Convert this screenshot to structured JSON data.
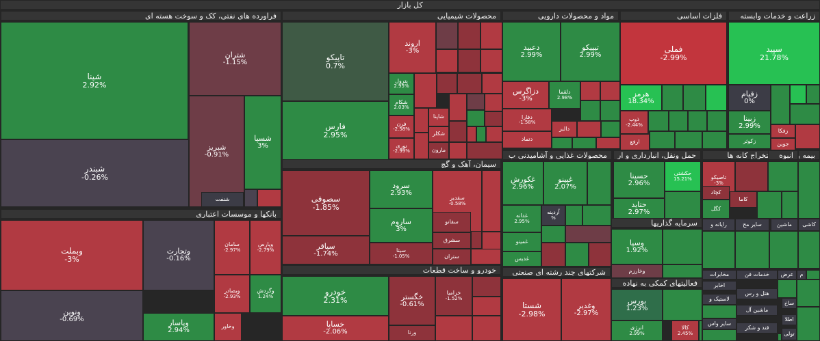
{
  "title": "کل بازار",
  "colors": {
    "g1": "#2e8b45",
    "g2": "#36a455",
    "g3": "#27c153",
    "g4": "#2f6e4a",
    "g5": "#3f5a45",
    "r1": "#b13a42",
    "r2": "#8e333b",
    "r3": "#6e3d47",
    "r4": "#c2353d",
    "dk": "#4a4350",
    "dk2": "#3c3c46"
  },
  "sectors": [
    {
      "id": "oil",
      "label": "فراورده های نفتی، کک و سوخت هسته ای"
    },
    {
      "id": "chem",
      "label": "محصولات شیمیایی"
    },
    {
      "id": "pharma",
      "label": "مواد و محصولات دارویی"
    },
    {
      "id": "metal",
      "label": "فلزات اساسی"
    },
    {
      "id": "agri",
      "label": "زراعت و خدمات وابسته"
    },
    {
      "id": "bank",
      "label": "بانکها و موسسات اعتباری"
    },
    {
      "id": "cement",
      "label": "سیمان، آهک و گچ"
    },
    {
      "id": "auto",
      "label": "خودرو و ساخت قطعات"
    },
    {
      "id": "multi",
      "label": "شرکتهای چند رشته ای صنعتی"
    },
    {
      "id": "food",
      "label": "محصولات غذایی و آشامیدنی ب"
    },
    {
      "id": "transport",
      "label": "حمل ونقل، انبارداری و ار"
    },
    {
      "id": "mining",
      "label": "استخراج کانه ها"
    },
    {
      "id": "insure",
      "label": "بیمه و"
    },
    {
      "id": "invest",
      "label": "سرمایه گذاریها"
    },
    {
      "id": "fin",
      "label": "فعالیتهای کمکی به نهاده"
    },
    {
      "id": "mass",
      "label": "انبوه"
    }
  ],
  "tiles": [
    {
      "n": "شپنا",
      "p": "2.92%"
    },
    {
      "n": "شتران",
      "p": "-1.15%"
    },
    {
      "n": "شبریز",
      "p": "-0.91%"
    },
    {
      "n": "شسپا",
      "p": "3%"
    },
    {
      "n": "شبندر",
      "p": "-0.26%"
    },
    {
      "n": "شنفت",
      "p": ""
    },
    {
      "n": "تاپیکو",
      "p": "0.7%"
    },
    {
      "n": "فارس",
      "p": "2.95%"
    },
    {
      "n": "اروند",
      "p": "-3%"
    },
    {
      "n": "پترول",
      "p": "2.95%"
    },
    {
      "n": "شکام",
      "p": "2.03%"
    },
    {
      "n": "فرن",
      "p": "-2.58%"
    },
    {
      "n": "نوری",
      "p": "-2.99%"
    },
    {
      "n": "شاپنا",
      "p": ""
    },
    {
      "n": "شکلر",
      "p": ""
    },
    {
      "n": "مارون",
      "p": ""
    },
    {
      "n": "دعبید",
      "p": "2.99%"
    },
    {
      "n": "تیپیکو",
      "p": "2.99%"
    },
    {
      "n": "دزاگرس",
      "p": "-3%"
    },
    {
      "n": "دلقما",
      "p": "2.98%"
    },
    {
      "n": "دفارا",
      "p": "-1.58%"
    },
    {
      "n": "دالبر",
      "p": ""
    },
    {
      "n": "دتماد",
      "p": ""
    },
    {
      "n": "فملی",
      "p": "-2.99%"
    },
    {
      "n": "هرمز",
      "p": "18.34%"
    },
    {
      "n": "ذوب",
      "p": "-2.44%"
    },
    {
      "n": "ارفع",
      "p": ""
    },
    {
      "n": "سپید",
      "p": "21.78%"
    },
    {
      "n": "زقیام",
      "p": "0%"
    },
    {
      "n": "زبینا",
      "p": "2.99%"
    },
    {
      "n": "زکوثر",
      "p": ""
    },
    {
      "n": "زفکا",
      "p": ""
    },
    {
      "n": "جوین",
      "p": ""
    },
    {
      "n": "وبملت",
      "p": "-3%"
    },
    {
      "n": "وتجارت",
      "p": "-0.16%"
    },
    {
      "n": "سامان",
      "p": "-2.97%"
    },
    {
      "n": "وپارس",
      "p": "-2.79%"
    },
    {
      "n": "وبصادر",
      "p": "-2.93%"
    },
    {
      "n": "وگردش",
      "p": "1.24%"
    },
    {
      "n": "ونوین",
      "p": "-0.69%"
    },
    {
      "n": "وپاسار",
      "p": "2.94%"
    },
    {
      "n": "وخاور",
      "p": ""
    },
    {
      "n": "سصوفی",
      "p": "-1.85%"
    },
    {
      "n": "سرود",
      "p": "2.93%"
    },
    {
      "n": "سفدیر",
      "p": "-0.58%"
    },
    {
      "n": "ساروم",
      "p": "3%"
    },
    {
      "n": "سفانو",
      "p": ""
    },
    {
      "n": "سشرق",
      "p": ""
    },
    {
      "n": "سپاقر",
      "p": "-1.74%"
    },
    {
      "n": "سیتا",
      "p": "-1.05%"
    },
    {
      "n": "ستران",
      "p": ""
    },
    {
      "n": "خودرو",
      "p": "2.31%"
    },
    {
      "n": "خگستر",
      "p": "-0.61%"
    },
    {
      "n": "خزامیا",
      "p": "-1.52%"
    },
    {
      "n": "خساپا",
      "p": "-2.06%"
    },
    {
      "n": "ورنا",
      "p": ""
    },
    {
      "n": "شستا",
      "p": "-2.98%"
    },
    {
      "n": "وغدیر",
      "p": "-2.97%"
    },
    {
      "n": "غکورش",
      "p": "2.96%"
    },
    {
      "n": "غپینو",
      "p": "2.07%"
    },
    {
      "n": "غدانه",
      "p": "2.95%"
    },
    {
      "n": "آردینه",
      "p": "%"
    },
    {
      "n": "غمینو",
      "p": ""
    },
    {
      "n": "غدیس",
      "p": ""
    },
    {
      "n": "حسینا",
      "p": "2.96%"
    },
    {
      "n": "حکشتی",
      "p": "15.21%"
    },
    {
      "n": "حتاید",
      "p": "2.97%"
    },
    {
      "n": "کگل",
      "p": ""
    },
    {
      "n": "تاصیکو",
      "p": "-3%"
    },
    {
      "n": "کچاد",
      "p": ""
    },
    {
      "n": "کاما",
      "p": ""
    },
    {
      "n": "وسپا",
      "p": "1.92%"
    },
    {
      "n": "وخارزم",
      "p": ""
    },
    {
      "n": "بورس",
      "p": "1.23%"
    },
    {
      "n": "انرژی",
      "p": "2.99%"
    },
    {
      "n": "کالا",
      "p": "2.45%"
    },
    {
      "n": "رایانه و",
      "p": ""
    },
    {
      "n": "سایر مح",
      "p": ""
    },
    {
      "n": "ماشین",
      "p": ""
    },
    {
      "n": "کاشی",
      "p": ""
    },
    {
      "n": "مخابرات",
      "p": ""
    },
    {
      "n": "خدمات فن",
      "p": ""
    },
    {
      "n": "عرض",
      "p": ""
    },
    {
      "n": "م",
      "p": ""
    },
    {
      "n": "اخابر",
      "p": ""
    },
    {
      "n": "هتل و رس",
      "p": ""
    },
    {
      "n": "لاستیک و",
      "p": ""
    },
    {
      "n": "ساخ",
      "p": ""
    },
    {
      "n": "ماشین آل",
      "p": ""
    },
    {
      "n": "اطلا",
      "p": ""
    },
    {
      "n": "سایر واس",
      "p": ""
    },
    {
      "n": "قند و شکر",
      "p": ""
    },
    {
      "n": "تولی",
      "p": ""
    }
  ]
}
